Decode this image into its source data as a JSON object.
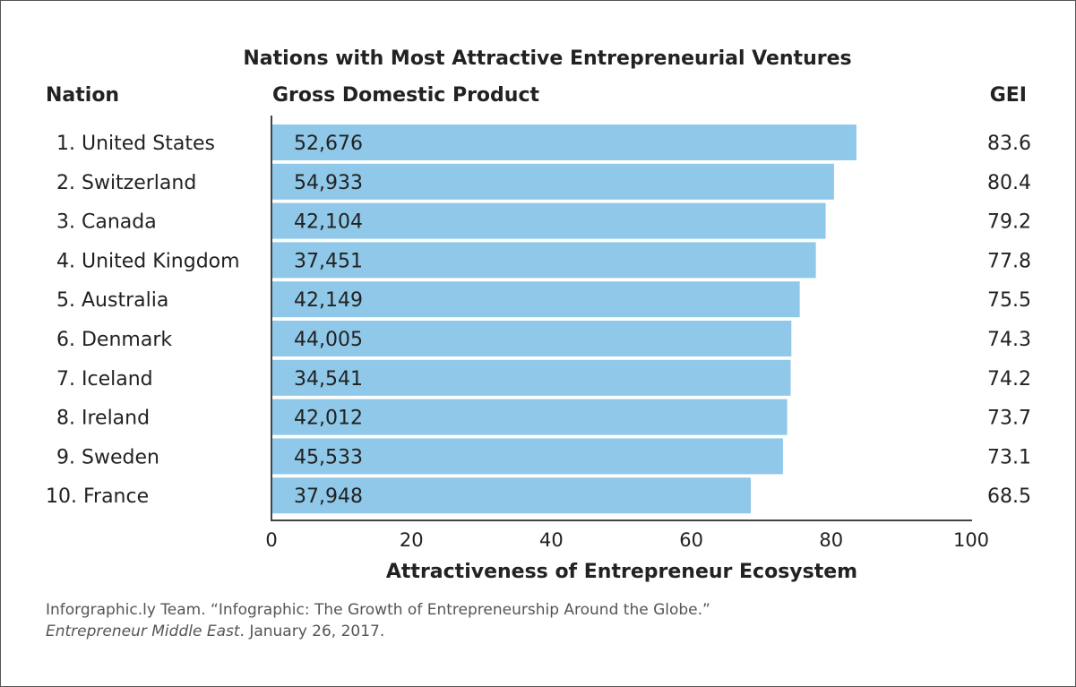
{
  "chart_data": {
    "type": "bar",
    "orientation": "horizontal",
    "title": "Nations with Most Attractive Entrepreneurial Ventures",
    "category_header": "Nation",
    "bar_label_header": "Gross Domestic Product",
    "value_header": "GEI",
    "xlabel": "Attractiveness of Entrepreneur Ecosystem",
    "xlim": [
      0,
      100
    ],
    "xticks": [
      0,
      20,
      40,
      60,
      80,
      100
    ],
    "grid": false,
    "bar_color": "#8fc8e8",
    "categories": [
      "1. United States",
      "2. Switzerland",
      "3. Canada",
      "4. United Kingdom",
      "5. Australia",
      "6. Denmark",
      "7. Iceland",
      "8. Ireland",
      "9. Sweden",
      "10. France"
    ],
    "gdp_labels": [
      "52,676",
      "54,933",
      "42,104",
      "37,451",
      "42,149",
      "44,005",
      "34,541",
      "42,012",
      "45,533",
      "37,948"
    ],
    "values": [
      83.6,
      80.4,
      79.2,
      77.8,
      75.5,
      74.3,
      74.2,
      73.7,
      73.1,
      68.5
    ],
    "value_labels": [
      "83.6",
      "80.4",
      "79.2",
      "77.8",
      "75.5",
      "74.3",
      "74.2",
      "73.7",
      "73.1",
      "68.5"
    ]
  },
  "citation": {
    "line1": "Inforgraphic.ly Team. “Infographic: The Growth of Entrepreneurship Around the Globe.”",
    "source": "Entrepreneur Middle East",
    "date": ". January 26, 2017."
  }
}
